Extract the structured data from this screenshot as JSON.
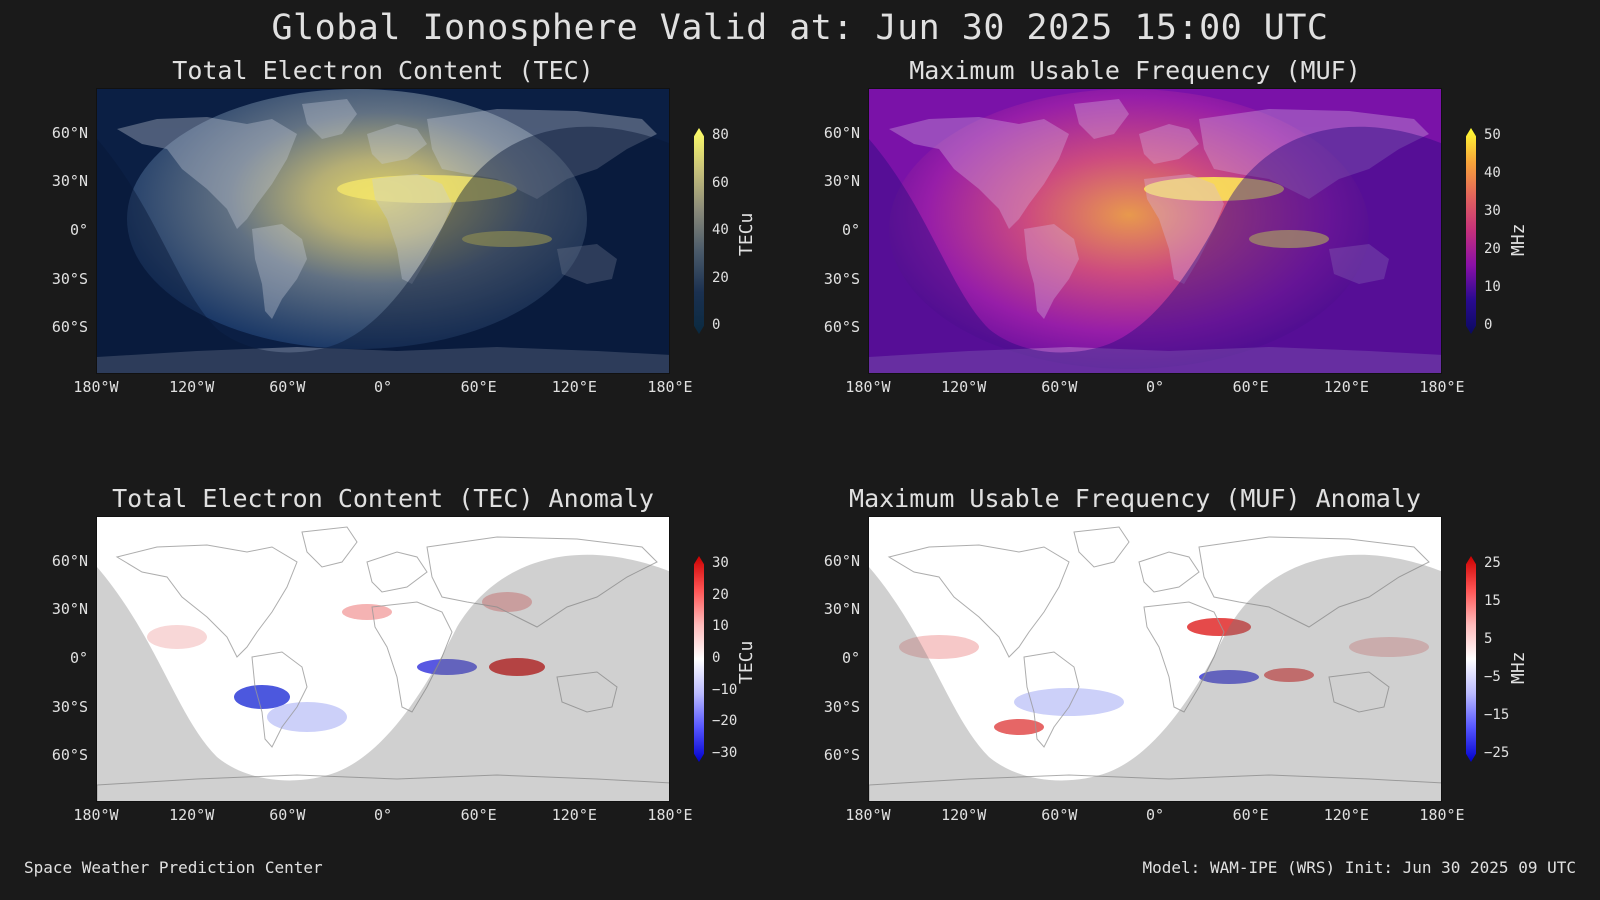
{
  "title": "Global Ionosphere Valid at: Jun 30 2025 15:00 UTC",
  "footer": {
    "left": "Space Weather Prediction Center",
    "right": "Model: WAM-IPE (WRS) Init: Jun 30 2025 09 UTC"
  },
  "lat_ticks": [
    "60°N",
    "30°N",
    "0°",
    "30°S",
    "60°S"
  ],
  "lon_ticks": [
    "180°W",
    "120°W",
    "60°W",
    "0°",
    "60°E",
    "120°E",
    "180°E"
  ],
  "panels": [
    {
      "id": "tec",
      "title": "Total Electron Content (TEC)",
      "colorbar": {
        "label": "TECu",
        "ticks": [
          "80",
          "60",
          "40",
          "20",
          "0"
        ],
        "colors": [
          "#ffff66",
          "#c8c27a",
          "#8a8a7a",
          "#4a5a6a",
          "#1a3050",
          "#0a2a40"
        ]
      }
    },
    {
      "id": "muf",
      "title": "Maximum Usable Frequency (MUF)",
      "colorbar": {
        "label": "MHz",
        "ticks": [
          "50",
          "40",
          "30",
          "20",
          "10",
          "0"
        ],
        "colors": [
          "#ffff33",
          "#f7a43a",
          "#e2635c",
          "#c5307c",
          "#8a10a8",
          "#2a0a90",
          "#0a0a60"
        ]
      }
    },
    {
      "id": "tec-anom",
      "title": "Total Electron Content (TEC) Anomaly",
      "colorbar": {
        "label": "TECu",
        "ticks": [
          "30",
          "20",
          "10",
          "0",
          "−10",
          "−20",
          "−30"
        ],
        "colors": [
          "#cc0000",
          "#ff5555",
          "#ffbbbb",
          "#ffffff",
          "#bbbbff",
          "#5555ff",
          "#0000cc"
        ]
      }
    },
    {
      "id": "muf-anom",
      "title": "Maximum Usable Frequency (MUF) Anomaly",
      "colorbar": {
        "label": "MHz",
        "ticks": [
          "25",
          "15",
          "5",
          "−5",
          "−15",
          "−25"
        ],
        "colors": [
          "#cc0000",
          "#ff5555",
          "#ffbbbb",
          "#ffffff",
          "#bbbbff",
          "#5555ff",
          "#0000cc"
        ]
      }
    }
  ]
}
